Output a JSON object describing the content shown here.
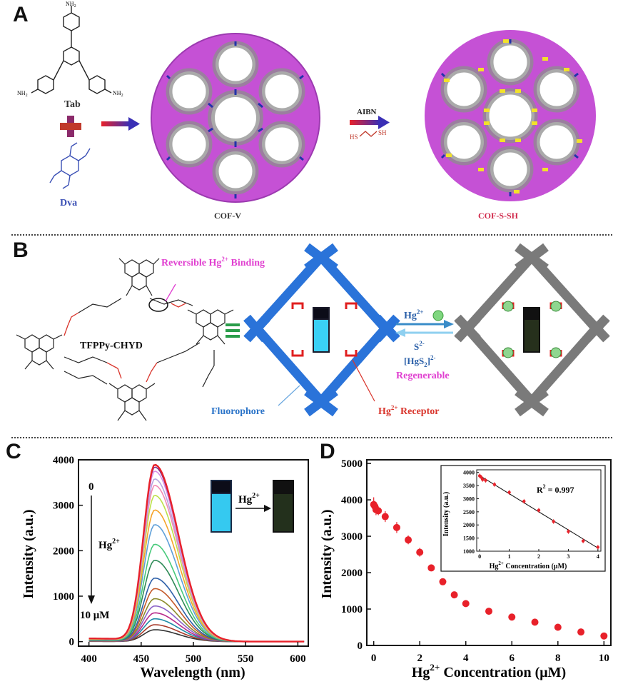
{
  "panel_letters": {
    "a": "A",
    "b": "B",
    "c": "C",
    "d": "D"
  },
  "panel_a": {
    "monomer1": "Tab",
    "monomer2": "Dva",
    "nh2": "NH",
    "nh2_sub": "2",
    "reagent": "AIBN",
    "thiol_left": "HS",
    "thiol_right": "SH",
    "product1": "COF-V",
    "product2": "COF-S-SH"
  },
  "panel_b": {
    "binding_label": "Reversible Hg",
    "binding_sup": "2+",
    "binding_tail": " Binding",
    "framework_name": "TFPPy-CHYD",
    "fluorophore_label": "Fluorophore",
    "receptor_label": "Hg",
    "receptor_sup": "2+",
    "receptor_tail": " Receptor",
    "hg_ion": "Hg",
    "hg_sup": "2+",
    "sulfide": "S",
    "sulfide_sup": "2-",
    "complex": "[HgS",
    "complex_sub": "2",
    "complex_tail": "]",
    "complex_sup": "2-",
    "regenerable": "Regenerable"
  },
  "panel_c": {
    "xlabel": "Wavelength (nm)",
    "ylabel": "Intensity (a.u.)",
    "xticks": [
      "400",
      "450",
      "500",
      "550",
      "600"
    ],
    "yticks": [
      "0",
      "1000",
      "2000",
      "3000",
      "4000"
    ],
    "arrow_top": "0",
    "arrow_mid": "Hg",
    "arrow_mid_sup": "2+",
    "arrow_bottom": "10 μM",
    "inset_label": "Hg",
    "inset_sup": "2+"
  },
  "panel_d": {
    "xlabel": "Hg",
    "xlabel_sup": "2+",
    "xlabel_tail": " Concentration (μM)",
    "ylabel": "Intensity (a.u.)",
    "xticks": [
      "0",
      "2",
      "4",
      "6",
      "8",
      "10"
    ],
    "yticks": [
      "0",
      "1000",
      "2000",
      "3000",
      "4000",
      "5000"
    ],
    "inset_xlabel": "Hg",
    "inset_xlabel_sup": "2+",
    "inset_xlabel_tail": " Concentration (μM)",
    "inset_ylabel": "Intensity (a.u.)",
    "inset_xticks": [
      "0",
      "1",
      "2",
      "3",
      "4"
    ],
    "inset_yticks": [
      "1000",
      "1500",
      "2000",
      "2500",
      "3000",
      "3500",
      "4000"
    ],
    "r2_label": "R",
    "r2_sup": "2",
    "r2_value": " = 0.997"
  },
  "chart_data": [
    {
      "type": "line",
      "panel": "C",
      "xlabel": "Wavelength (nm)",
      "ylabel": "Intensity (a.u.)",
      "xlim": [
        390,
        610
      ],
      "ylim": [
        -100,
        4000
      ],
      "peak_nm": 463,
      "series": [
        {
          "concentration_uM": 0,
          "peak": 3870,
          "color": "#e8212a"
        },
        {
          "concentration_uM": 0.05,
          "peak": 3820,
          "color": "#7a2f8f"
        },
        {
          "concentration_uM": 0.1,
          "peak": 3730,
          "color": "#d98ee6"
        },
        {
          "concentration_uM": 0.2,
          "peak": 3560,
          "color": "#b8a5e0"
        },
        {
          "concentration_uM": 0.5,
          "peak": 3420,
          "color": "#f28ab5"
        },
        {
          "concentration_uM": 1,
          "peak": 3200,
          "color": "#bde04a"
        },
        {
          "concentration_uM": 1.5,
          "peak": 2880,
          "color": "#f5a42a"
        },
        {
          "concentration_uM": 2,
          "peak": 2560,
          "color": "#5fa0d9"
        },
        {
          "concentration_uM": 2.5,
          "peak": 2130,
          "color": "#47c97a"
        },
        {
          "concentration_uM": 3,
          "peak": 1780,
          "color": "#2e8b57"
        },
        {
          "concentration_uM": 3.5,
          "peak": 1390,
          "color": "#2d5fa8"
        },
        {
          "concentration_uM": 4,
          "peak": 1160,
          "color": "#c45a2a"
        },
        {
          "concentration_uM": 5,
          "peak": 940,
          "color": "#8a8a2a"
        },
        {
          "concentration_uM": 6,
          "peak": 780,
          "color": "#8a63c8"
        },
        {
          "concentration_uM": 7,
          "peak": 630,
          "color": "#b82a8a"
        },
        {
          "concentration_uM": 8,
          "peak": 500,
          "color": "#1e8ca8"
        },
        {
          "concentration_uM": 9,
          "peak": 370,
          "color": "#a83a2a"
        },
        {
          "concentration_uM": 10,
          "peak": 260,
          "color": "#333333"
        }
      ]
    },
    {
      "type": "scatter",
      "panel": "D",
      "xlabel": "Hg2+ Concentration (μM)",
      "ylabel": "Intensity (a.u.)",
      "xlim": [
        -0.3,
        10.3
      ],
      "ylim": [
        0,
        5100
      ],
      "x": [
        0,
        0.05,
        0.1,
        0.2,
        0.5,
        1,
        1.5,
        2,
        2.5,
        3,
        3.5,
        4,
        5,
        6,
        7,
        8,
        9,
        10
      ],
      "y": [
        3870,
        3820,
        3730,
        3700,
        3540,
        3240,
        2900,
        2560,
        2130,
        1750,
        1390,
        1150,
        940,
        780,
        640,
        500,
        370,
        260
      ],
      "error": [
        200,
        150,
        150,
        120,
        150,
        150,
        120,
        120,
        80,
        60,
        60,
        60,
        40,
        40,
        40,
        40,
        40,
        40
      ],
      "color": "#e8212a"
    },
    {
      "type": "scatter",
      "panel": "D-inset",
      "xlabel": "Hg2+ Concentration (μM)",
      "ylabel": "Intensity (a.u.)",
      "xlim": [
        -0.1,
        4.1
      ],
      "ylim": [
        1000,
        4100
      ],
      "x": [
        0,
        0.05,
        0.1,
        0.2,
        0.5,
        1,
        1.5,
        2,
        2.5,
        3,
        3.5,
        4
      ],
      "y": [
        3870,
        3820,
        3730,
        3700,
        3540,
        3240,
        2900,
        2560,
        2130,
        1750,
        1390,
        1150
      ],
      "fit": {
        "x": [
          0,
          4
        ],
        "y": [
          3880,
          1120
        ],
        "r2": 0.997
      }
    }
  ]
}
